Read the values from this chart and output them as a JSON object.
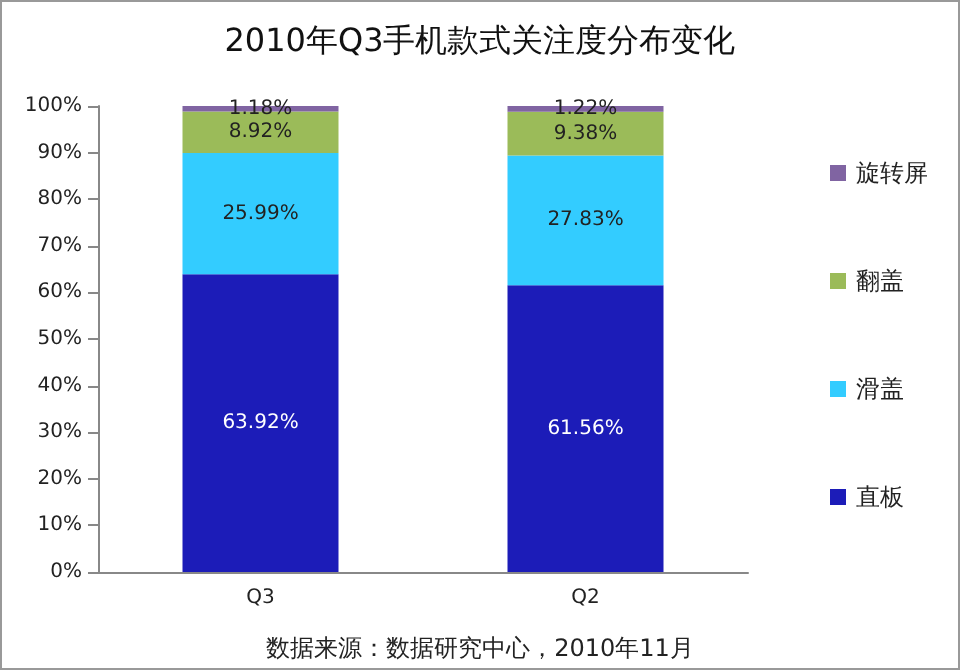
{
  "chart_data": {
    "type": "bar",
    "stacked": true,
    "title": "2010年Q3手机款式关注度分布变化",
    "categories": [
      "Q3",
      "Q2"
    ],
    "series": [
      {
        "name": "直板",
        "color": "#1c1cb8",
        "values": [
          63.92,
          61.56
        ],
        "value_labels": [
          "63.92%",
          "61.56%"
        ]
      },
      {
        "name": "滑盖",
        "color": "#33ccff",
        "values": [
          25.99,
          27.83
        ],
        "value_labels": [
          "25.99%",
          "27.83%"
        ]
      },
      {
        "name": "翻盖",
        "color": "#9bbb59",
        "values": [
          8.92,
          9.38
        ],
        "value_labels": [
          "8.92%",
          "9.38%"
        ]
      },
      {
        "name": "旋转屏",
        "color": "#8064a2",
        "values": [
          1.18,
          1.22
        ],
        "value_labels": [
          "1.18%",
          "1.22%"
        ]
      }
    ],
    "ylim": [
      0,
      100
    ],
    "yticks": [
      {
        "value": 0,
        "label": "0%"
      },
      {
        "value": 10,
        "label": "10%"
      },
      {
        "value": 20,
        "label": "20%"
      },
      {
        "value": 30,
        "label": "30%"
      },
      {
        "value": 40,
        "label": "40%"
      },
      {
        "value": 50,
        "label": "50%"
      },
      {
        "value": 60,
        "label": "60%"
      },
      {
        "value": 70,
        "label": "70%"
      },
      {
        "value": 80,
        "label": "80%"
      },
      {
        "value": 90,
        "label": "90%"
      },
      {
        "value": 100,
        "label": "100%"
      }
    ],
    "legend": "right",
    "annotations": [
      "数据来源：数据研究中心，2010年11月"
    ]
  }
}
